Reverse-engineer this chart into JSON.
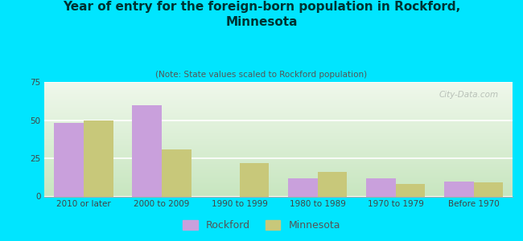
{
  "title": "Year of entry for the foreign-born population in Rockford,\nMinnesota",
  "subtitle": "(Note: State values scaled to Rockford population)",
  "categories": [
    "2010 or later",
    "2000 to 2009",
    "1990 to 1999",
    "1980 to 1989",
    "1970 to 1979",
    "Before 1970"
  ],
  "rockford_values": [
    48,
    60,
    0,
    12,
    12,
    10
  ],
  "minnesota_values": [
    50,
    31,
    22,
    16,
    8,
    9
  ],
  "rockford_color": "#c9a0dc",
  "minnesota_color": "#c8c87a",
  "ylim": [
    0,
    75
  ],
  "yticks": [
    0,
    25,
    50,
    75
  ],
  "background_outer": "#00e5ff",
  "background_inner_top": "#e8f5e0",
  "background_inner_bottom": "#d0ecc0",
  "bar_width": 0.38,
  "watermark": "City-Data.com",
  "legend_rockford": "Rockford",
  "legend_minnesota": "Minnesota",
  "title_fontsize": 11,
  "subtitle_fontsize": 7.5,
  "tick_fontsize": 7.5,
  "legend_fontsize": 9
}
